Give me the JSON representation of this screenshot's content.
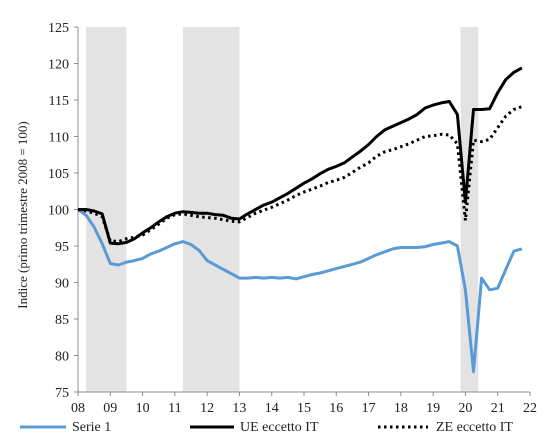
{
  "chart_data": {
    "type": "line",
    "ylabel": "Indice (primo trimestre 2008 = 100)",
    "xlabel": "",
    "ylim": [
      75,
      125
    ],
    "yticks": [
      75,
      80,
      85,
      90,
      95,
      100,
      105,
      110,
      115,
      120,
      125
    ],
    "xlim": [
      2008,
      2022
    ],
    "xticks": [
      "08",
      "09",
      "10",
      "11",
      "12",
      "13",
      "14",
      "15",
      "16",
      "17",
      "18",
      "19",
      "20",
      "21",
      "22"
    ],
    "xtick_values": [
      2008,
      2009,
      2010,
      2011,
      2012,
      2013,
      2014,
      2015,
      2016,
      2017,
      2018,
      2019,
      2020,
      2021,
      2022
    ],
    "grid": false,
    "legend_position": "bottom",
    "shaded_periods": [
      [
        2008.25,
        2009.5
      ],
      [
        2011.25,
        2013.0
      ],
      [
        2019.85,
        2020.4
      ]
    ],
    "series": [
      {
        "name": "Serie 1",
        "color": "#5b9bd5",
        "style": "solid",
        "x": [
          2008.0,
          2008.25,
          2008.5,
          2008.75,
          2009.0,
          2009.25,
          2009.5,
          2009.75,
          2010.0,
          2010.25,
          2010.5,
          2010.75,
          2011.0,
          2011.25,
          2011.5,
          2011.75,
          2012.0,
          2012.25,
          2012.5,
          2012.75,
          2013.0,
          2013.25,
          2013.5,
          2013.75,
          2014.0,
          2014.25,
          2014.5,
          2014.75,
          2015.0,
          2015.25,
          2015.5,
          2015.75,
          2016.0,
          2016.25,
          2016.5,
          2016.75,
          2017.0,
          2017.25,
          2017.5,
          2017.75,
          2018.0,
          2018.25,
          2018.5,
          2018.75,
          2019.0,
          2019.25,
          2019.5,
          2019.75,
          2020.0,
          2020.25,
          2020.5,
          2020.75,
          2021.0,
          2021.25,
          2021.5,
          2021.75
        ],
        "values": [
          100.0,
          99.2,
          97.6,
          95.3,
          92.6,
          92.4,
          92.8,
          93.0,
          93.3,
          93.9,
          94.3,
          94.8,
          95.3,
          95.6,
          95.2,
          94.4,
          93.0,
          92.4,
          91.8,
          91.2,
          90.6,
          90.6,
          90.7,
          90.6,
          90.7,
          90.6,
          90.7,
          90.5,
          90.8,
          91.1,
          91.3,
          91.6,
          91.9,
          92.2,
          92.5,
          92.8,
          93.3,
          93.8,
          94.2,
          94.6,
          94.8,
          94.8,
          94.8,
          94.9,
          95.2,
          95.4,
          95.6,
          95.0,
          89.0,
          77.8,
          90.6,
          89.0,
          89.2,
          91.8,
          94.3,
          94.6
        ]
      },
      {
        "name": "UE eccetto IT",
        "color": "#000000",
        "style": "solid",
        "x": [
          2008.0,
          2008.25,
          2008.5,
          2008.75,
          2009.0,
          2009.25,
          2009.5,
          2009.75,
          2010.0,
          2010.25,
          2010.5,
          2010.75,
          2011.0,
          2011.25,
          2011.5,
          2011.75,
          2012.0,
          2012.25,
          2012.5,
          2012.75,
          2013.0,
          2013.25,
          2013.5,
          2013.75,
          2014.0,
          2014.25,
          2014.5,
          2014.75,
          2015.0,
          2015.25,
          2015.5,
          2015.75,
          2016.0,
          2016.25,
          2016.5,
          2016.75,
          2017.0,
          2017.25,
          2017.5,
          2017.75,
          2018.0,
          2018.25,
          2018.5,
          2018.75,
          2019.0,
          2019.25,
          2019.5,
          2019.75,
          2020.0,
          2020.25,
          2020.5,
          2020.75,
          2021.0,
          2021.25,
          2021.5,
          2021.75
        ],
        "values": [
          100.0,
          100.0,
          99.8,
          99.4,
          95.4,
          95.3,
          95.5,
          96.0,
          96.8,
          97.5,
          98.3,
          99.0,
          99.5,
          99.7,
          99.6,
          99.5,
          99.5,
          99.3,
          99.2,
          98.8,
          98.7,
          99.4,
          100.0,
          100.6,
          101.0,
          101.6,
          102.2,
          102.9,
          103.6,
          104.2,
          104.9,
          105.5,
          105.9,
          106.4,
          107.2,
          108.0,
          108.9,
          110.0,
          110.9,
          111.4,
          111.9,
          112.4,
          113.0,
          113.9,
          114.3,
          114.6,
          114.8,
          113.0,
          101.0,
          113.7,
          113.7,
          113.8,
          116.0,
          117.8,
          118.8,
          119.4
        ]
      },
      {
        "name": "ZE eccetto IT",
        "color": "#000000",
        "style": "dotted",
        "x": [
          2008.0,
          2008.25,
          2008.5,
          2008.75,
          2009.0,
          2009.25,
          2009.5,
          2009.75,
          2010.0,
          2010.25,
          2010.5,
          2010.75,
          2011.0,
          2011.25,
          2011.5,
          2011.75,
          2012.0,
          2012.25,
          2012.5,
          2012.75,
          2013.0,
          2013.25,
          2013.5,
          2013.75,
          2014.0,
          2014.25,
          2014.5,
          2014.75,
          2015.0,
          2015.25,
          2015.5,
          2015.75,
          2016.0,
          2016.25,
          2016.5,
          2016.75,
          2017.0,
          2017.25,
          2017.5,
          2017.75,
          2018.0,
          2018.25,
          2018.5,
          2018.75,
          2019.0,
          2019.25,
          2019.5,
          2019.75,
          2020.0,
          2020.25,
          2020.5,
          2020.75,
          2021.0,
          2021.25,
          2021.5,
          2021.75
        ],
        "values": [
          100.0,
          99.8,
          99.5,
          99.0,
          95.7,
          95.6,
          96.0,
          96.2,
          96.5,
          97.2,
          98.0,
          98.8,
          99.3,
          99.4,
          99.2,
          99.0,
          98.9,
          98.8,
          98.6,
          98.4,
          98.3,
          98.9,
          99.5,
          99.9,
          100.3,
          100.8,
          101.3,
          101.9,
          102.4,
          102.8,
          103.2,
          103.7,
          104.0,
          104.4,
          105.1,
          105.8,
          106.4,
          107.3,
          107.9,
          108.2,
          108.6,
          109.0,
          109.5,
          110.0,
          110.1,
          110.3,
          110.2,
          109.0,
          98.5,
          109.5,
          109.3,
          109.6,
          111.2,
          112.8,
          113.7,
          114.1
        ]
      }
    ]
  }
}
